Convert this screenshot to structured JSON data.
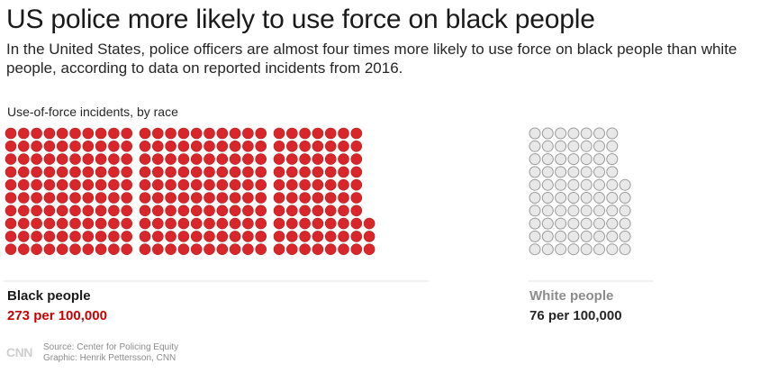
{
  "header": {
    "title": "US police more likely to use force on black people",
    "subtitle": "In the United States, police officers are almost four times more likely to use force on black people than white people, according to data on reported incidents from 2016."
  },
  "chart_data": {
    "type": "unit",
    "title": "Use-of-force incidents, by race",
    "unit_value": 1,
    "series": [
      {
        "name": "Black people",
        "value": 273,
        "label": "273 per 100,000",
        "color": "#d9262a",
        "label_color": "#cc0000"
      },
      {
        "name": "White people",
        "value": 76,
        "label": "76 per 100,000",
        "color": "#e8e8e8",
        "label_color": "#262626"
      }
    ]
  },
  "footer": {
    "logo": "CNN",
    "source": "Source: Center for Policing Equity",
    "credit": "Graphic: Henrik Pettersson, CNN"
  }
}
